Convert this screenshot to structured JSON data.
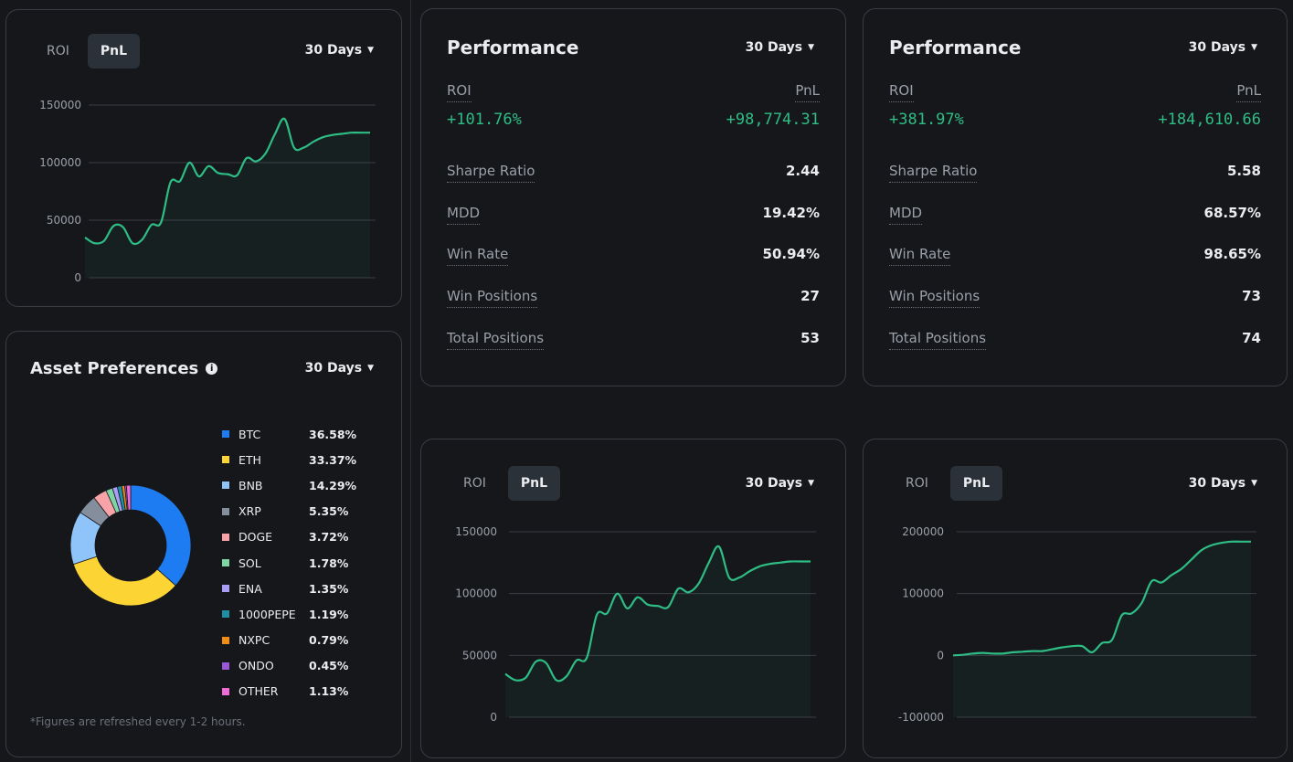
{
  "roi_label": "ROI",
  "pnl_label": "PnL",
  "period": "30 Days",
  "charts": {
    "a": {
      "yticks": [
        "150000",
        "100000",
        "50000",
        "0"
      ],
      "chart_data": {
        "type": "area",
        "ylim": [
          0,
          150000
        ],
        "x": [
          0,
          1,
          2,
          3,
          4,
          5,
          6,
          7,
          8,
          9,
          10,
          11,
          12,
          13,
          14,
          15,
          16,
          17,
          18,
          19,
          20,
          21,
          22,
          23,
          24,
          25,
          26,
          27,
          28,
          29,
          30
        ],
        "values": [
          35000,
          30000,
          32000,
          45000,
          44000,
          30000,
          33000,
          46000,
          48000,
          83000,
          84000,
          100000,
          88000,
          97000,
          91000,
          90000,
          89000,
          104000,
          101000,
          108000,
          125000,
          138000,
          113000,
          113000,
          118000,
          122000,
          124000,
          125000,
          126000,
          126000,
          126000
        ]
      }
    },
    "b": {
      "yticks": [
        "150000",
        "100000",
        "50000",
        "0"
      ],
      "chart_data": {
        "type": "area",
        "ylim": [
          0,
          150000
        ],
        "x": [
          0,
          1,
          2,
          3,
          4,
          5,
          6,
          7,
          8,
          9,
          10,
          11,
          12,
          13,
          14,
          15,
          16,
          17,
          18,
          19,
          20,
          21,
          22,
          23,
          24,
          25,
          26,
          27,
          28,
          29,
          30
        ],
        "values": [
          35000,
          30000,
          32000,
          45000,
          44000,
          30000,
          33000,
          46000,
          48000,
          83000,
          84000,
          100000,
          88000,
          97000,
          91000,
          90000,
          89000,
          104000,
          101000,
          108000,
          125000,
          138000,
          113000,
          113000,
          118000,
          122000,
          124000,
          125000,
          126000,
          126000,
          126000
        ]
      }
    },
    "c": {
      "yticks": [
        "200000",
        "100000",
        "0",
        "-100000"
      ],
      "chart_data": {
        "type": "area",
        "ylim": [
          -100000,
          200000
        ],
        "x": [
          0,
          1,
          2,
          3,
          4,
          5,
          6,
          7,
          8,
          9,
          10,
          11,
          12,
          13,
          14,
          15,
          16,
          17,
          18,
          19,
          20,
          21,
          22,
          23,
          24,
          25,
          26,
          27,
          28,
          29,
          30
        ],
        "values": [
          0,
          1000,
          3000,
          4000,
          3000,
          3000,
          5000,
          6000,
          7000,
          7000,
          10000,
          13000,
          15000,
          15000,
          5000,
          20000,
          25000,
          65000,
          68000,
          85000,
          120000,
          118000,
          130000,
          140000,
          155000,
          170000,
          178000,
          182000,
          184000,
          184000,
          184000
        ]
      }
    }
  },
  "perf1": {
    "title": "Performance",
    "roi_value": "+101.76%",
    "pnl_value": "+98,774.31",
    "metrics": [
      {
        "label": "Sharpe Ratio",
        "value": "2.44"
      },
      {
        "label": "MDD",
        "value": "19.42%"
      },
      {
        "label": "Win Rate",
        "value": "50.94%"
      },
      {
        "label": "Win Positions",
        "value": "27"
      },
      {
        "label": "Total Positions",
        "value": "53"
      }
    ]
  },
  "perf2": {
    "title": "Performance",
    "roi_value": "+381.97%",
    "pnl_value": "+184,610.66",
    "metrics": [
      {
        "label": "Sharpe Ratio",
        "value": "5.58"
      },
      {
        "label": "MDD",
        "value": "68.57%"
      },
      {
        "label": "Win Rate",
        "value": "98.65%"
      },
      {
        "label": "Win Positions",
        "value": "73"
      },
      {
        "label": "Total Positions",
        "value": "74"
      }
    ]
  },
  "assets": {
    "title": "Asset Preferences",
    "footnote": "*Figures are refreshed every 1-2 hours.",
    "chart_data": {
      "type": "pie",
      "items": [
        {
          "name": "BTC",
          "value": 36.58,
          "label": "36.58%",
          "color": "#1e7cf2"
        },
        {
          "name": "ETH",
          "value": 33.37,
          "label": "33.37%",
          "color": "#fcd535"
        },
        {
          "name": "BNB",
          "value": 14.29,
          "label": "14.29%",
          "color": "#8fc4fb"
        },
        {
          "name": "XRP",
          "value": 5.35,
          "label": "5.35%",
          "color": "#848e9c"
        },
        {
          "name": "DOGE",
          "value": 3.72,
          "label": "3.72%",
          "color": "#f7a3a7"
        },
        {
          "name": "SOL",
          "value": 1.78,
          "label": "1.78%",
          "color": "#7fd4a4"
        },
        {
          "name": "ENA",
          "value": 1.35,
          "label": "1.35%",
          "color": "#a99df5"
        },
        {
          "name": "1000PEPE",
          "value": 1.19,
          "label": "1.19%",
          "color": "#1d8ea3"
        },
        {
          "name": "NXPC",
          "value": 0.79,
          "label": "0.79%",
          "color": "#f28c13"
        },
        {
          "name": "ONDO",
          "value": 0.45,
          "label": "0.45%",
          "color": "#9a58d9"
        },
        {
          "name": "OTHER",
          "value": 1.13,
          "label": "1.13%",
          "color": "#f06bd6"
        }
      ]
    }
  }
}
